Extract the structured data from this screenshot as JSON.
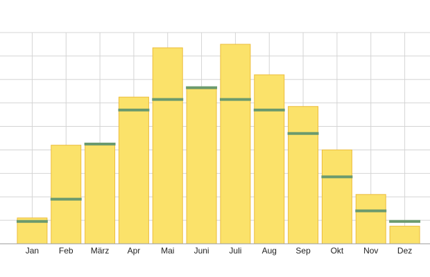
{
  "chart_data": {
    "type": "bar",
    "categories": [
      "Jan",
      "Feb",
      "März",
      "Apr",
      "Mai",
      "Juni",
      "Juli",
      "Aug",
      "Sep",
      "Okt",
      "Nov",
      "Dez"
    ],
    "series": [
      {
        "type": "bar",
        "color": "#fbe26a",
        "values": [
          1.1,
          4.2,
          4.2,
          6.25,
          8.35,
          6.6,
          8.5,
          7.2,
          5.85,
          4.0,
          2.1,
          0.75
        ]
      },
      {
        "type": "marker",
        "color": "#6b9a6e",
        "values": [
          0.95,
          1.9,
          4.25,
          5.7,
          6.15,
          6.65,
          6.15,
          5.7,
          4.7,
          2.85,
          1.4,
          0.95
        ]
      }
    ],
    "ylim": [
      0,
      9
    ],
    "yticks": [
      0,
      1,
      2,
      3,
      4,
      5,
      6,
      7,
      8,
      9
    ],
    "grid": true
  }
}
